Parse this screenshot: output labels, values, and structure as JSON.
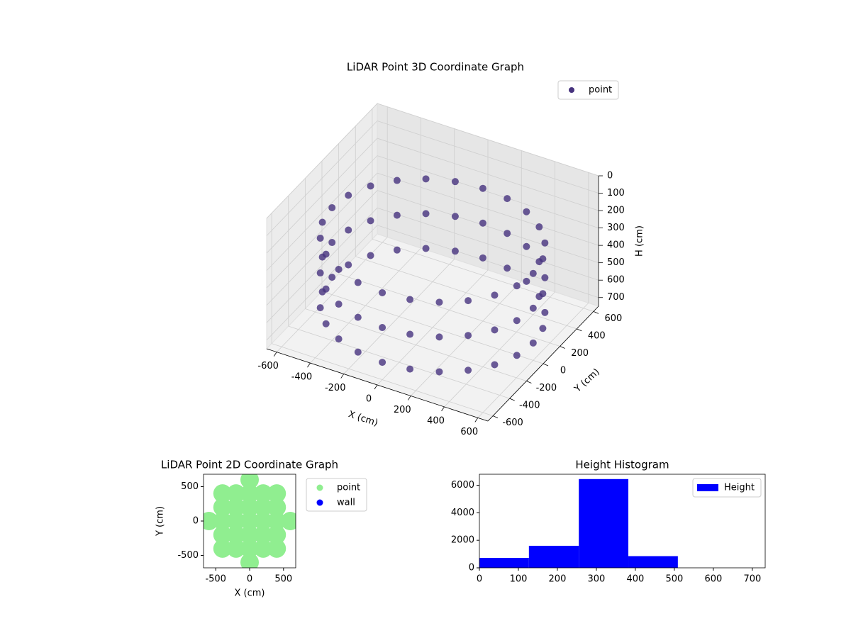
{
  "chart_data": [
    {
      "type": "scatter3d",
      "title": "LiDAR Point 3D Coordinate Graph",
      "xlabel": "X (cm)",
      "ylabel": "Y (cm)",
      "zlabel": "H (cm)",
      "xlim": [
        -660,
        660
      ],
      "ylim": [
        -660,
        660
      ],
      "zlim": [
        0,
        750
      ],
      "z_inverted": true,
      "grid": true,
      "legend": "upper right",
      "xticks": [
        -600,
        -400,
        -200,
        0,
        200,
        400,
        600
      ],
      "yticks": [
        -600,
        -400,
        -200,
        0,
        200,
        400,
        600
      ],
      "zticks": [
        0,
        100,
        200,
        300,
        400,
        500,
        600,
        700
      ],
      "series": [
        {
          "name": "point",
          "color": "#46327e",
          "x": [
            600,
            580,
            520,
            424,
            300,
            155,
            0,
            -155,
            -300,
            -424,
            -520,
            -580,
            -600,
            -580,
            -520,
            -424,
            -300,
            -155,
            0,
            155,
            300,
            424,
            520,
            580,
            600,
            580,
            520,
            424,
            300,
            155,
            0,
            -155,
            -300,
            -424,
            -520,
            -580,
            -600,
            -580,
            -520,
            -424,
            -300,
            -155,
            0,
            155,
            300,
            424,
            520,
            580,
            600,
            580,
            520,
            424,
            300,
            155,
            0,
            -155,
            -300,
            -424,
            -520,
            -580,
            -600,
            -580,
            -520,
            -424,
            -300,
            -155,
            0,
            155,
            300,
            424,
            520,
            580
          ],
          "y": [
            0,
            155,
            300,
            424,
            520,
            580,
            600,
            580,
            520,
            424,
            300,
            155,
            0,
            -155,
            -300,
            -424,
            -520,
            -580,
            -600,
            -580,
            -520,
            -424,
            -300,
            -155,
            0,
            155,
            300,
            424,
            520,
            580,
            600,
            580,
            520,
            424,
            300,
            155,
            0,
            -155,
            -300,
            -424,
            -520,
            -580,
            -600,
            -580,
            -520,
            -424,
            -300,
            -155,
            0,
            155,
            300,
            424,
            520,
            580,
            600,
            580,
            520,
            424,
            300,
            155,
            0,
            -155,
            -300,
            -424,
            -520,
            -580,
            -600,
            -580,
            -520,
            -424,
            -300,
            -155
          ],
          "z": [
            250,
            250,
            250,
            250,
            250,
            250,
            250,
            250,
            250,
            250,
            250,
            250,
            250,
            250,
            250,
            250,
            250,
            250,
            250,
            250,
            250,
            250,
            250,
            250,
            450,
            450,
            450,
            450,
            450,
            450,
            450,
            450,
            450,
            450,
            450,
            450,
            450,
            450,
            450,
            450,
            450,
            450,
            450,
            450,
            450,
            450,
            450,
            450,
            650,
            650,
            650,
            650,
            650,
            650,
            650,
            650,
            650,
            650,
            650,
            650,
            650,
            650,
            650,
            650,
            650,
            650,
            650,
            650,
            650,
            650,
            650,
            650
          ]
        }
      ]
    },
    {
      "type": "scatter",
      "title": "LiDAR Point 2D Coordinate Graph",
      "xlabel": "X (cm)",
      "ylabel": "Y (cm)",
      "xlim": [
        -680,
        680
      ],
      "ylim": [
        -680,
        680
      ],
      "xticks": [
        -500,
        0,
        500
      ],
      "yticks": [
        -500,
        0,
        500
      ],
      "legend": "outside upper right",
      "series": [
        {
          "name": "point",
          "color": "#90ee90",
          "x": [
            0,
            0,
            0,
            0,
            0,
            0,
            0,
            200,
            200,
            200,
            200,
            200,
            -200,
            -200,
            -200,
            -200,
            -200,
            400,
            400,
            400,
            400,
            400,
            -400,
            -400,
            -400,
            -400,
            -400,
            600,
            -600
          ],
          "y": [
            -600,
            -400,
            -200,
            0,
            200,
            400,
            600,
            -400,
            -200,
            0,
            200,
            400,
            -400,
            -200,
            0,
            200,
            400,
            -400,
            -200,
            0,
            200,
            400,
            -400,
            -200,
            0,
            200,
            400,
            0,
            0
          ]
        },
        {
          "name": "wall",
          "color": "#0000ff",
          "x": [],
          "y": []
        }
      ]
    },
    {
      "type": "histogram",
      "title": "Height Histogram",
      "xlim": [
        0,
        733
      ],
      "ylim": [
        0,
        6800
      ],
      "xticks": [
        0,
        100,
        200,
        300,
        400,
        500,
        600,
        700
      ],
      "yticks": [
        0,
        2000,
        4000,
        6000
      ],
      "legend": "upper right",
      "series": [
        {
          "name": "Height",
          "color": "#0000ff",
          "bins": [
            0,
            127,
            255,
            382,
            509
          ],
          "values": [
            720,
            1600,
            6450,
            850
          ]
        }
      ]
    }
  ]
}
